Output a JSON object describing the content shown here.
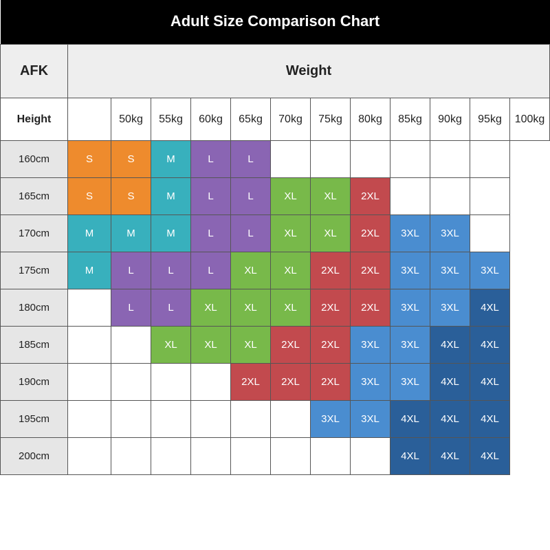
{
  "title": "Adult Size Comparison Chart",
  "corner_label": "AFK",
  "col_axis_label": "Weight",
  "row_axis_label": "Height",
  "columns": [
    "50kg",
    "55kg",
    "60kg",
    "65kg",
    "70kg",
    "75kg",
    "80kg",
    "85kg",
    "90kg",
    "95kg",
    "100kg"
  ],
  "rows": [
    "160cm",
    "165cm",
    "170cm",
    "175cm",
    "180cm",
    "185cm",
    "190cm",
    "195cm",
    "200cm"
  ],
  "size_colors": {
    "S": "#ee8b2d",
    "M": "#38b0bd",
    "L": "#8a65b3",
    "XL": "#78b94a",
    "2XL": "#c24a4e",
    "3XL": "#4a8dd0",
    "4XL": "#2a5f99"
  },
  "grid": [
    [
      "S",
      "S",
      "M",
      "L",
      "L",
      "",
      "",
      "",
      "",
      "",
      ""
    ],
    [
      "S",
      "S",
      "M",
      "L",
      "L",
      "XL",
      "XL",
      "2XL",
      "",
      "",
      ""
    ],
    [
      "M",
      "M",
      "M",
      "L",
      "L",
      "XL",
      "XL",
      "2XL",
      "3XL",
      "3XL",
      ""
    ],
    [
      "M",
      "L",
      "L",
      "L",
      "XL",
      "XL",
      "2XL",
      "2XL",
      "3XL",
      "3XL",
      "3XL"
    ],
    [
      "",
      "L",
      "L",
      "XL",
      "XL",
      "XL",
      "2XL",
      "2XL",
      "3XL",
      "3XL",
      "4XL"
    ],
    [
      "",
      "",
      "XL",
      "XL",
      "XL",
      "2XL",
      "2XL",
      "3XL",
      "3XL",
      "4XL",
      "4XL"
    ],
    [
      "",
      "",
      "",
      "",
      "2XL",
      "2XL",
      "2XL",
      "3XL",
      "3XL",
      "4XL",
      "4XL"
    ],
    [
      "",
      "",
      "",
      "",
      "",
      "",
      "3XL",
      "3XL",
      "4XL",
      "4XL",
      "4XL"
    ],
    [
      "",
      "",
      "",
      "",
      "",
      "",
      "",
      "",
      "4XL",
      "4XL",
      "4XL"
    ]
  ],
  "style": {
    "title_bg": "#000000",
    "title_color": "#ffffff",
    "title_fontsize": 22,
    "header_bg": "#eeeeee",
    "header_fontsize": 20,
    "border_color": "#555555",
    "row_label_bg": "#e6e6e6",
    "cell_text_color": "#ffffff",
    "body_fontsize": 15,
    "empty_bg": "#ffffff"
  }
}
